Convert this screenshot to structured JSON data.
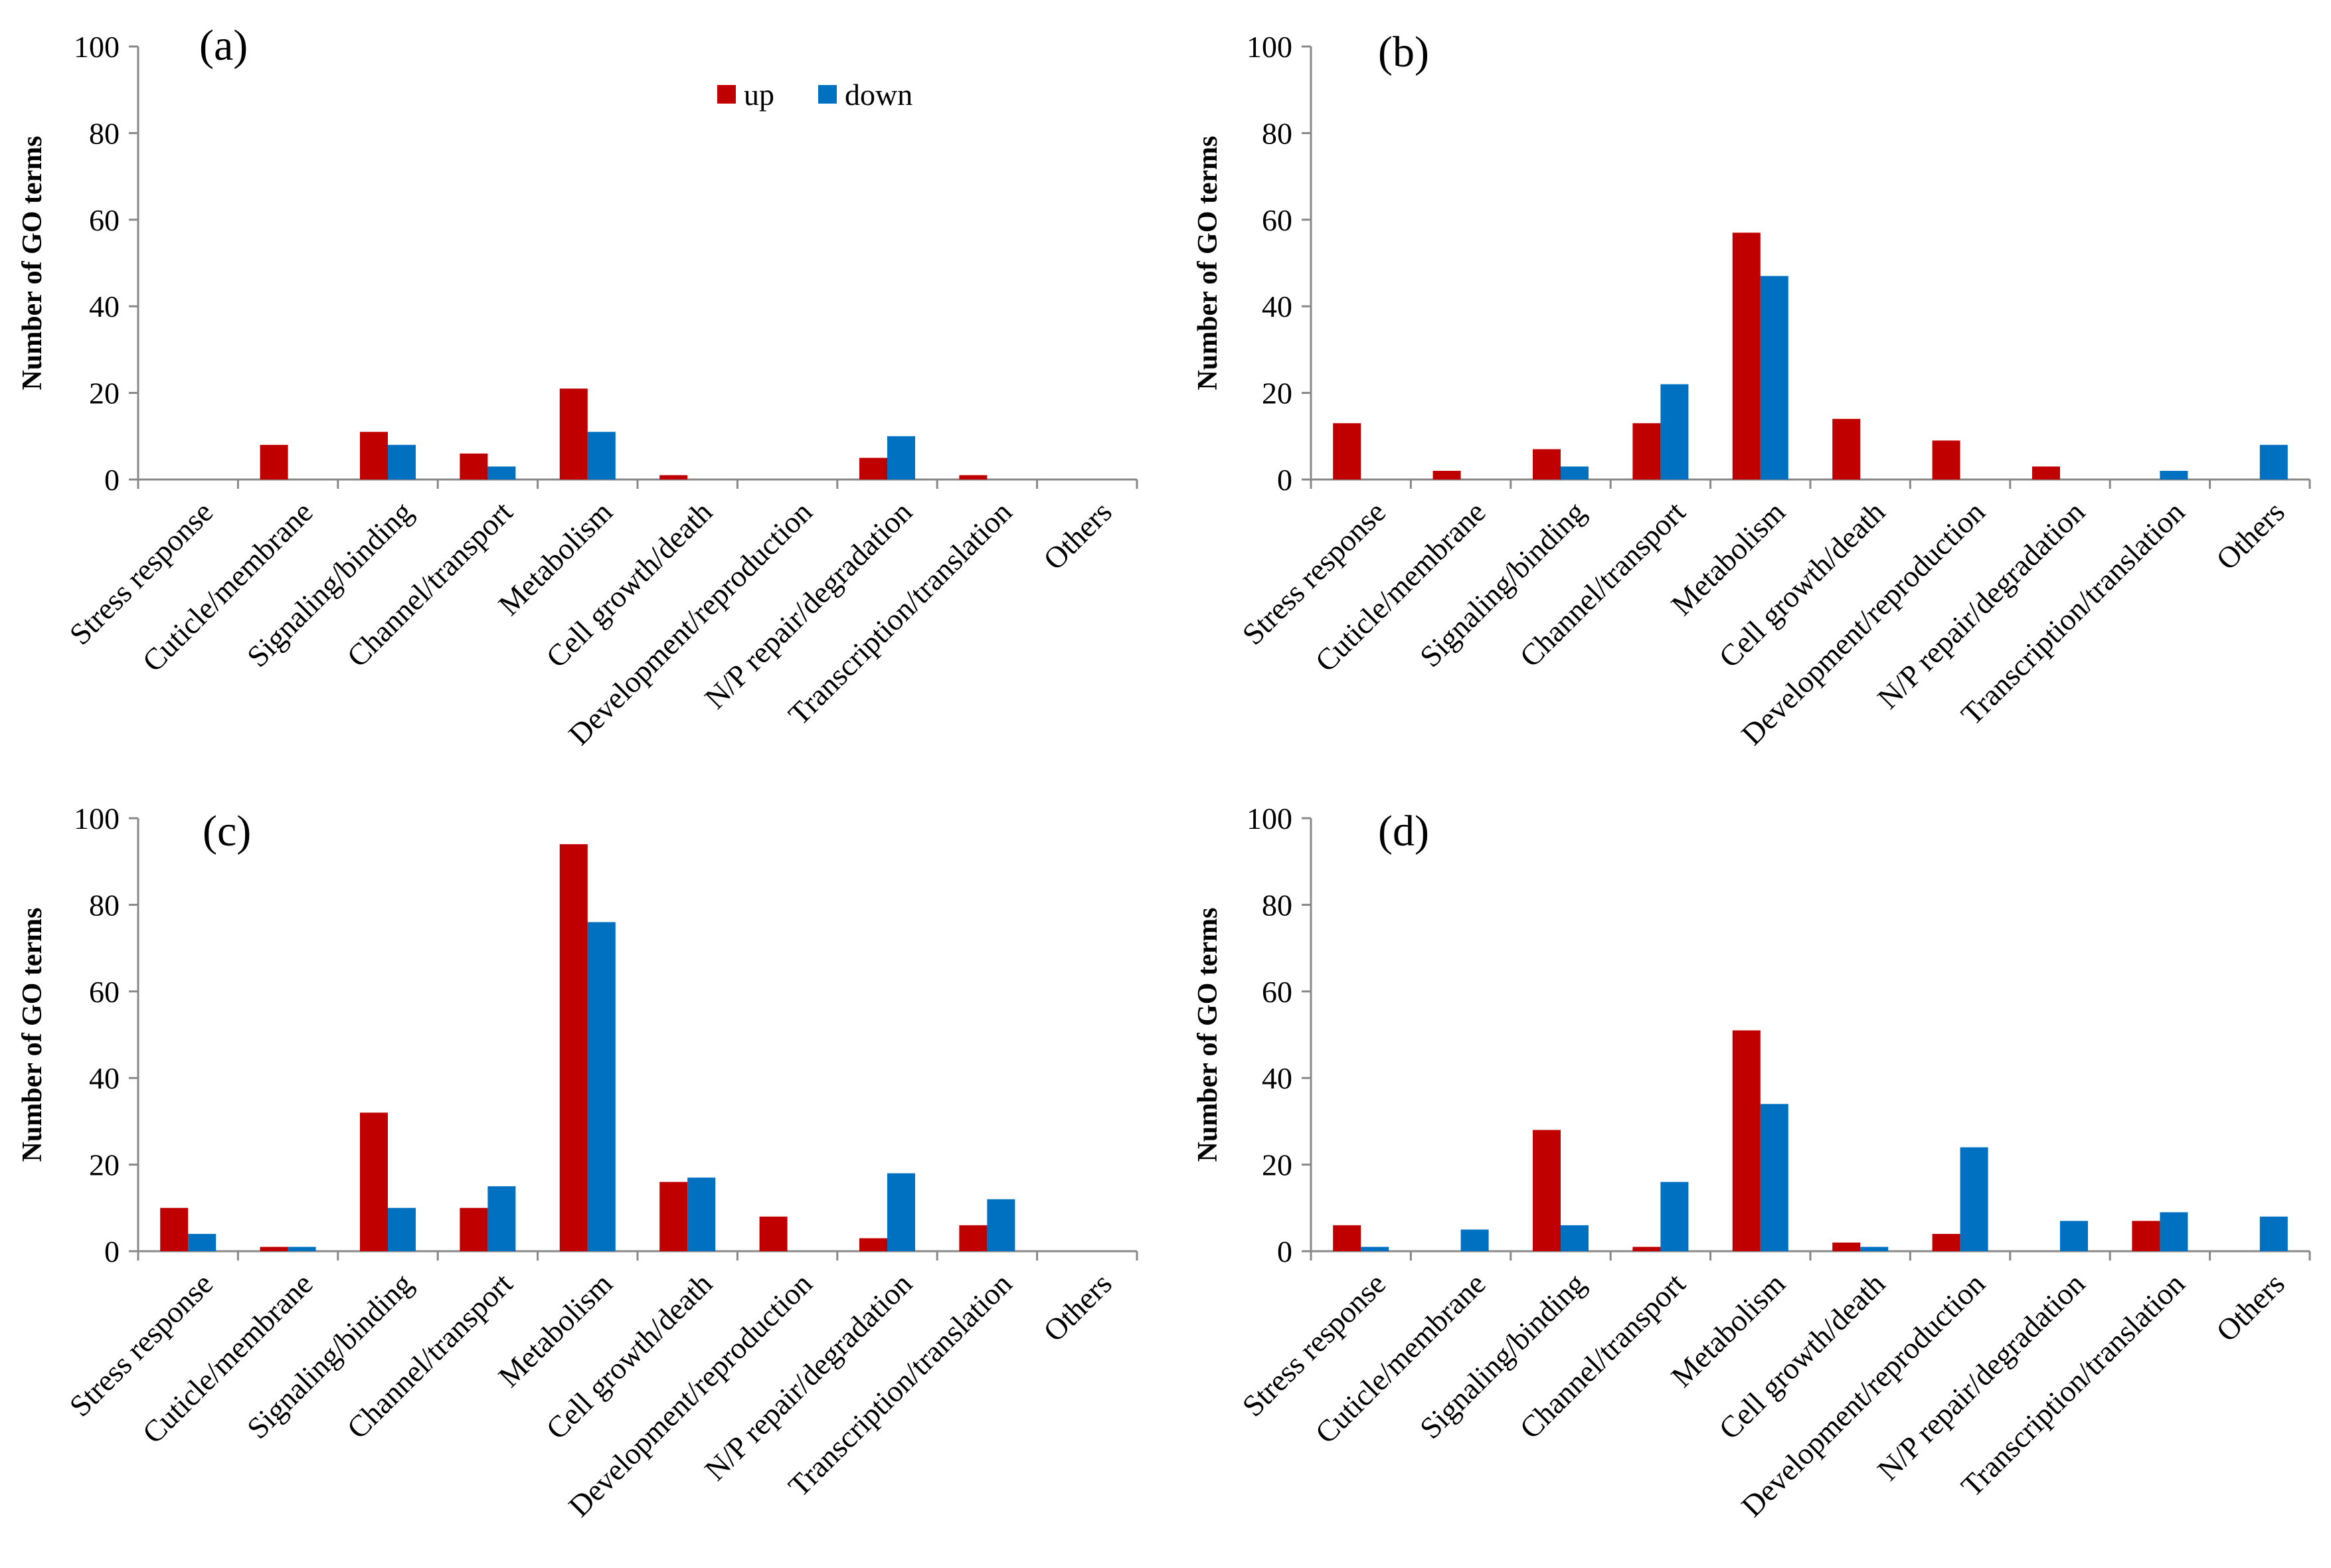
{
  "figure": {
    "legend": [
      {
        "name": "up",
        "color": "#C00000"
      },
      {
        "name": "down",
        "color": "#0070C0"
      }
    ]
  },
  "chart_data": [
    {
      "type": "bar",
      "panel": "(a)",
      "ylabel": "Number of GO terms",
      "ylim": [
        0,
        100
      ],
      "yticks": [
        0,
        20,
        40,
        60,
        80,
        100
      ],
      "categories": [
        "Stress response",
        "Cuticle/membrane",
        "Signaling/binding",
        "Channel/transport",
        "Metabolism",
        "Cell growth/death",
        "Development/reproduction",
        "N/P repair/degradation",
        "Transcription/translation",
        "Others"
      ],
      "series": [
        {
          "name": "up",
          "color": "#C00000",
          "values": [
            0,
            8,
            11,
            6,
            21,
            1,
            0,
            5,
            1,
            0
          ]
        },
        {
          "name": "down",
          "color": "#0070C0",
          "values": [
            0,
            0,
            8,
            3,
            11,
            0,
            0,
            10,
            0,
            0
          ]
        }
      ]
    },
    {
      "type": "bar",
      "panel": "(b)",
      "ylabel": "Number of GO terms",
      "ylim": [
        0,
        100
      ],
      "yticks": [
        0,
        20,
        40,
        60,
        80,
        100
      ],
      "categories": [
        "Stress response",
        "Cuticle/membrane",
        "Signaling/binding",
        "Channel/transport",
        "Metabolism",
        "Cell growth/death",
        "Development/reproduction",
        "N/P repair/degradation",
        "Transcription/translation",
        "Others"
      ],
      "series": [
        {
          "name": "up",
          "color": "#C00000",
          "values": [
            13,
            2,
            7,
            13,
            57,
            14,
            9,
            3,
            0,
            0
          ]
        },
        {
          "name": "down",
          "color": "#0070C0",
          "values": [
            0,
            0,
            3,
            22,
            47,
            0,
            0,
            0,
            2,
            8
          ]
        }
      ]
    },
    {
      "type": "bar",
      "panel": "(c)",
      "ylabel": "Number of GO terms",
      "ylim": [
        0,
        100
      ],
      "yticks": [
        0,
        20,
        40,
        60,
        80,
        100
      ],
      "categories": [
        "Stress response",
        "Cuticle/membrane",
        "Signaling/binding",
        "Channel/transport",
        "Metabolism",
        "Cell growth/death",
        "Development/reproduction",
        "N/P repair/degradation",
        "Transcription/translation",
        "Others"
      ],
      "series": [
        {
          "name": "up",
          "color": "#C00000",
          "values": [
            10,
            1,
            32,
            10,
            94,
            16,
            8,
            3,
            6,
            0
          ]
        },
        {
          "name": "down",
          "color": "#0070C0",
          "values": [
            4,
            1,
            10,
            15,
            76,
            17,
            0,
            18,
            12,
            0
          ]
        }
      ]
    },
    {
      "type": "bar",
      "panel": "(d)",
      "ylabel": "Number of GO terms",
      "ylim": [
        0,
        100
      ],
      "yticks": [
        0,
        20,
        40,
        60,
        80,
        100
      ],
      "categories": [
        "Stress response",
        "Cuticle/membrane",
        "Signaling/binding",
        "Channel/transport",
        "Metabolism",
        "Cell growth/death",
        "Development/reproduction",
        "N/P repair/degradation",
        "Transcription/translation",
        "Others"
      ],
      "series": [
        {
          "name": "up",
          "color": "#C00000",
          "values": [
            6,
            0,
            28,
            1,
            51,
            2,
            4,
            0,
            7,
            0
          ]
        },
        {
          "name": "down",
          "color": "#0070C0",
          "values": [
            1,
            5,
            6,
            16,
            34,
            1,
            24,
            7,
            9,
            8
          ]
        }
      ]
    }
  ]
}
